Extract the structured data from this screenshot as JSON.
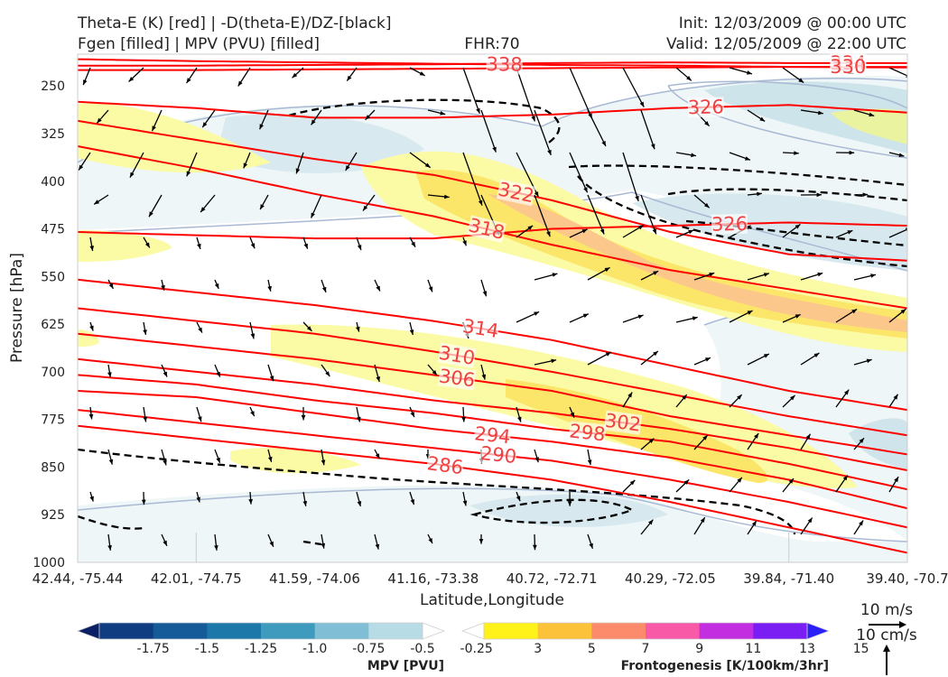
{
  "header": {
    "title_line1": "Theta-E (K) [red] | -D(theta-E)/DZ-[black]",
    "title_line2": "Fgen [filled] | MPV (PVU) [filled]",
    "fhr": "FHR:70",
    "init": "Init: 12/03/2009 @ 00:00 UTC",
    "valid": "Valid: 12/05/2009 @ 22:00 UTC"
  },
  "chart_data": {
    "type": "cross-section",
    "xlabel": "Latitude,Longitude",
    "ylabel": "Pressure [hPa]",
    "x_ticks": [
      "42.44, -75.44",
      "42.01, -74.75",
      "41.59, -74.06",
      "41.16, -73.38",
      "40.72, -72.71",
      "40.29, -72.05",
      "39.84, -71.40",
      "39.40, -70.7"
    ],
    "y_ticks": [
      250,
      325,
      400,
      475,
      550,
      625,
      700,
      775,
      850,
      925,
      1000
    ],
    "ylim": [
      1000,
      200
    ],
    "grid": false,
    "theta_e_contours": [
      {
        "level": 338,
        "label": "338",
        "y": [
          208,
          211,
          213,
          215,
          217,
          218,
          220,
          221
        ]
      },
      {
        "level": 334,
        "label": "334",
        "y": [
          218,
          218,
          217,
          216,
          214,
          213,
          214,
          214
        ]
      },
      {
        "level": 330,
        "label": "330",
        "y": [
          225,
          225,
          224,
          223,
          222,
          221,
          220,
          220
        ]
      },
      {
        "level": 326,
        "label": "326",
        "y": [
          275,
          285,
          300,
          300,
          295,
          285,
          280,
          292
        ]
      },
      {
        "level": 322,
        "label": "322",
        "y": [
          305,
          335,
          365,
          390,
          430,
          480,
          515,
          525
        ]
      },
      {
        "level": 318,
        "label": "318",
        "y": [
          345,
          380,
          420,
          455,
          500,
          540,
          570,
          600
        ]
      },
      {
        "level": 326,
        "label": "326",
        "y": [
          480,
          485,
          490,
          490,
          475,
          470,
          465,
          470
        ]
      },
      {
        "level": 314,
        "label": "314",
        "y": [
          555,
          575,
          595,
          620,
          650,
          690,
          730,
          760
        ]
      },
      {
        "level": 310,
        "label": "310",
        "y": [
          600,
          620,
          640,
          668,
          700,
          735,
          770,
          800
        ]
      },
      {
        "level": 306,
        "label": "306",
        "y": [
          640,
          660,
          680,
          705,
          730,
          770,
          800,
          830
        ]
      },
      {
        "level": 302,
        "label": "302",
        "y": [
          680,
          700,
          720,
          745,
          765,
          790,
          820,
          855
        ]
      },
      {
        "level": 298,
        "label": "298",
        "y": [
          705,
          720,
          745,
          765,
          790,
          810,
          845,
          885
        ]
      },
      {
        "level": 294,
        "label": "294",
        "y": [
          730,
          740,
          765,
          790,
          810,
          835,
          870,
          915
        ]
      },
      {
        "level": 290,
        "label": "290",
        "y": [
          760,
          780,
          800,
          820,
          840,
          870,
          905,
          945
        ]
      },
      {
        "level": 286,
        "label": "286",
        "y": [
          785,
          805,
          825,
          845,
          870,
          905,
          945,
          985
        ]
      }
    ],
    "colorbars": [
      {
        "name": "MPV [PVU]",
        "ticks": [
          "-1.75",
          "-1.5",
          "-1.25",
          "-1.0",
          "-0.75",
          "-0.5",
          "-0.25"
        ],
        "colors": [
          "#0a1f66",
          "#103d82",
          "#155a99",
          "#1c78a8",
          "#3f9bbd",
          "#80bed6",
          "#b8dce6",
          "#ffffff"
        ]
      },
      {
        "name": "Frontogenesis [K/100km/3hr]",
        "ticks": [
          "3",
          "5",
          "7",
          "9",
          "11",
          "13",
          "15"
        ],
        "colors": [
          "#ffffff",
          "#fff21a",
          "#fcc23a",
          "#fb8b6a",
          "#f85aa8",
          "#c22ee0",
          "#7b1ef3",
          "#2b1ffa"
        ]
      }
    ],
    "wind_scale": {
      "horizontal": "10 m/s",
      "vertical": "10 cm/s"
    }
  }
}
